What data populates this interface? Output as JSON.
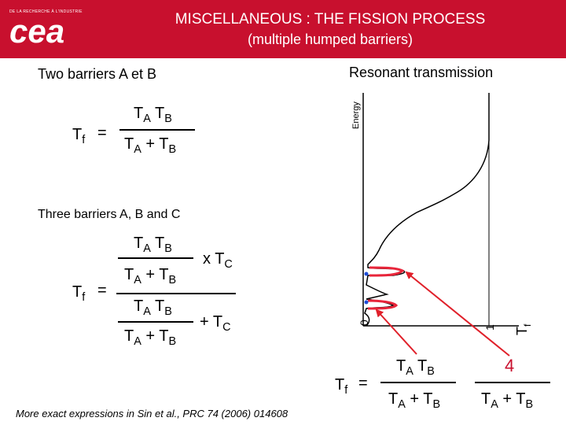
{
  "header": {
    "logo_small": "DE LA RECHERCHE À L'INDUSTRIE",
    "logo_text": "cea",
    "title_line1": "MISCELLANEOUS : THE FISSION PROCESS",
    "title_line2": "(multiple humped barriers)"
  },
  "two_barriers": {
    "heading": "Two barriers A et B",
    "lhs": "T",
    "lhs_sub": "f",
    "equals": "=",
    "num": [
      "T",
      "A",
      " T",
      "B"
    ],
    "den": [
      "T",
      "A",
      " + T",
      "B"
    ]
  },
  "three_barriers": {
    "heading": "Three barriers A, B and C",
    "lhs": "T",
    "lhs_sub": "f",
    "equals": "=",
    "upper_num": [
      "T",
      "A",
      " T",
      "B"
    ],
    "upper_den": [
      "T",
      "A",
      " + T",
      "B"
    ],
    "upper_factor": [
      "x T",
      "C"
    ],
    "lower_num": [
      "T",
      "A",
      " T",
      "B"
    ],
    "lower_den": [
      "T",
      "A",
      " + T",
      "B"
    ],
    "lower_term": [
      "+ T",
      "C"
    ]
  },
  "resonant": {
    "heading": "Resonant transmission",
    "energy_axis": "Energy",
    "tick_0": "0",
    "tick_1": "1",
    "tf_axis": "T",
    "tf_axis_sub": "f",
    "lhs": "T",
    "lhs_sub": "f",
    "equals": "=",
    "num": [
      "T",
      "A",
      " T",
      "B"
    ],
    "den": [
      "T",
      "A",
      " + T",
      "B"
    ],
    "peak_num": "4",
    "peak_den": [
      "T",
      "A",
      " + T",
      "B"
    ]
  },
  "footnote": "More exact expressions in Sin et al., PRC 74 (2006) 014608",
  "colors": {
    "header": "#c8102e",
    "arrow": "#e0202a",
    "curve_peak": "#e8253a",
    "dot": "#1e4cd8"
  }
}
